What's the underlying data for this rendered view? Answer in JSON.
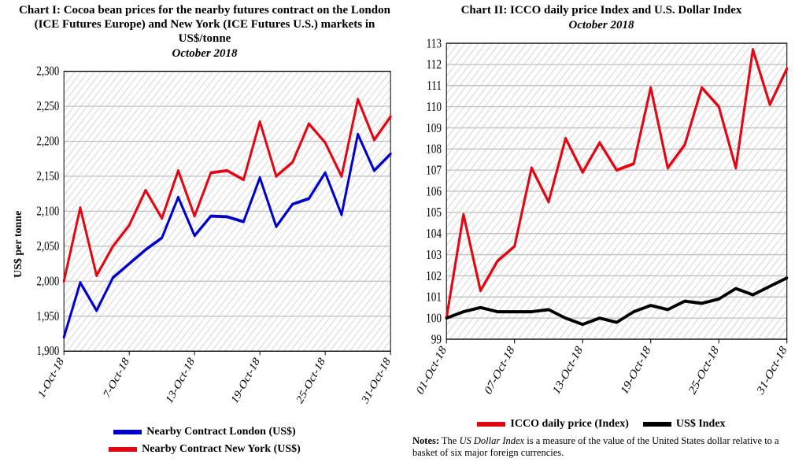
{
  "chart1": {
    "type": "line",
    "title": "Chart I: Cocoa bean prices for the nearby futures contract on the London (ICE Futures Europe) and New York (ICE Futures U.S.) markets in US$/tonne",
    "subtitle": "October 2018",
    "ylabel": "US$ per tonne",
    "ylim": [
      1900,
      2300
    ],
    "ytick_step": 50,
    "yticks": [
      1900,
      1950,
      2000,
      2050,
      2100,
      2150,
      2200,
      2250,
      2300
    ],
    "xticks": [
      "1-Oct-18",
      "7-Oct-18",
      "13-Oct-18",
      "19-Oct-18",
      "25-Oct-18",
      "31-Oct-18"
    ],
    "xtick_idx": [
      0,
      4,
      8,
      12,
      16,
      20
    ],
    "n_points": 21,
    "background_color": "#ffffff",
    "plot_bg_hatch_color": "#d9d9d9",
    "grid_color": "#bfbfbf",
    "axis_color": "#000000",
    "title_fontsize": 15,
    "label_fontsize": 14,
    "tick_fontsize": 13,
    "line_width": 3,
    "series": [
      {
        "name": "Nearby Contract London (US$)",
        "color": "#0000cc",
        "values": [
          1920,
          1998,
          1958,
          2005,
          2025,
          2045,
          2062,
          2120,
          2065,
          2093,
          2092,
          2085,
          2148,
          2078,
          2110,
          2118,
          2155,
          2095,
          2210,
          2158,
          2182
        ]
      },
      {
        "name": "Nearby Contract New York (US$)",
        "color": "#e30613",
        "values": [
          2000,
          2105,
          2008,
          2050,
          2080,
          2130,
          2090,
          2158,
          2093,
          2155,
          2158,
          2145,
          2228,
          2150,
          2170,
          2225,
          2198,
          2150,
          2260,
          2202,
          2235
        ]
      }
    ],
    "legend": [
      {
        "label": "Nearby Contract London (US$)",
        "color": "#0000cc"
      },
      {
        "label": "Nearby Contract New York (US$)",
        "color": "#e30613"
      }
    ]
  },
  "chart2": {
    "type": "line",
    "title": "Chart II: ICCO daily price Index and U.S. Dollar Index",
    "subtitle": "October 2018",
    "ylim": [
      99,
      113
    ],
    "ytick_step": 1,
    "yticks": [
      99,
      100,
      101,
      102,
      103,
      104,
      105,
      106,
      107,
      108,
      109,
      110,
      111,
      112,
      113
    ],
    "xticks": [
      "01-Oct-18",
      "07-Oct-18",
      "13-Oct-18",
      "19-Oct-18",
      "25-Oct-18",
      "31-Oct-18"
    ],
    "xtick_idx": [
      0,
      4,
      8,
      12,
      16,
      20
    ],
    "n_points": 21,
    "background_color": "#ffffff",
    "plot_bg_hatch_color": "#d9d9d9",
    "grid_color": "#bfbfbf",
    "axis_color": "#000000",
    "title_fontsize": 15,
    "tick_fontsize": 13,
    "line_width": 3,
    "series": [
      {
        "name": "ICCO daily price (Index)",
        "color": "#e30613",
        "values": [
          100.0,
          104.9,
          101.3,
          102.7,
          103.4,
          107.1,
          105.5,
          108.5,
          106.9,
          108.3,
          107.0,
          107.3,
          110.9,
          107.1,
          108.2,
          110.9,
          110.0,
          107.1,
          112.7,
          110.1,
          111.8
        ]
      },
      {
        "name": "US$ Index",
        "color": "#000000",
        "values": [
          100.0,
          100.3,
          100.5,
          100.3,
          100.3,
          100.3,
          100.4,
          100.0,
          99.7,
          100.0,
          99.8,
          100.3,
          100.6,
          100.4,
          100.8,
          100.7,
          100.9,
          101.4,
          101.1,
          101.5,
          101.9
        ]
      }
    ],
    "legend": [
      {
        "label": "ICCO daily price (Index)",
        "color": "#e30613"
      },
      {
        "label": "US$ Index",
        "color": "#000000"
      }
    ],
    "notes_prefix": "Notes:",
    "notes_italic": "US Dollar Index",
    "notes_pre": " The ",
    "notes_post": " is a measure of the value of the United States dollar relative to a basket of six major foreign currencies."
  }
}
